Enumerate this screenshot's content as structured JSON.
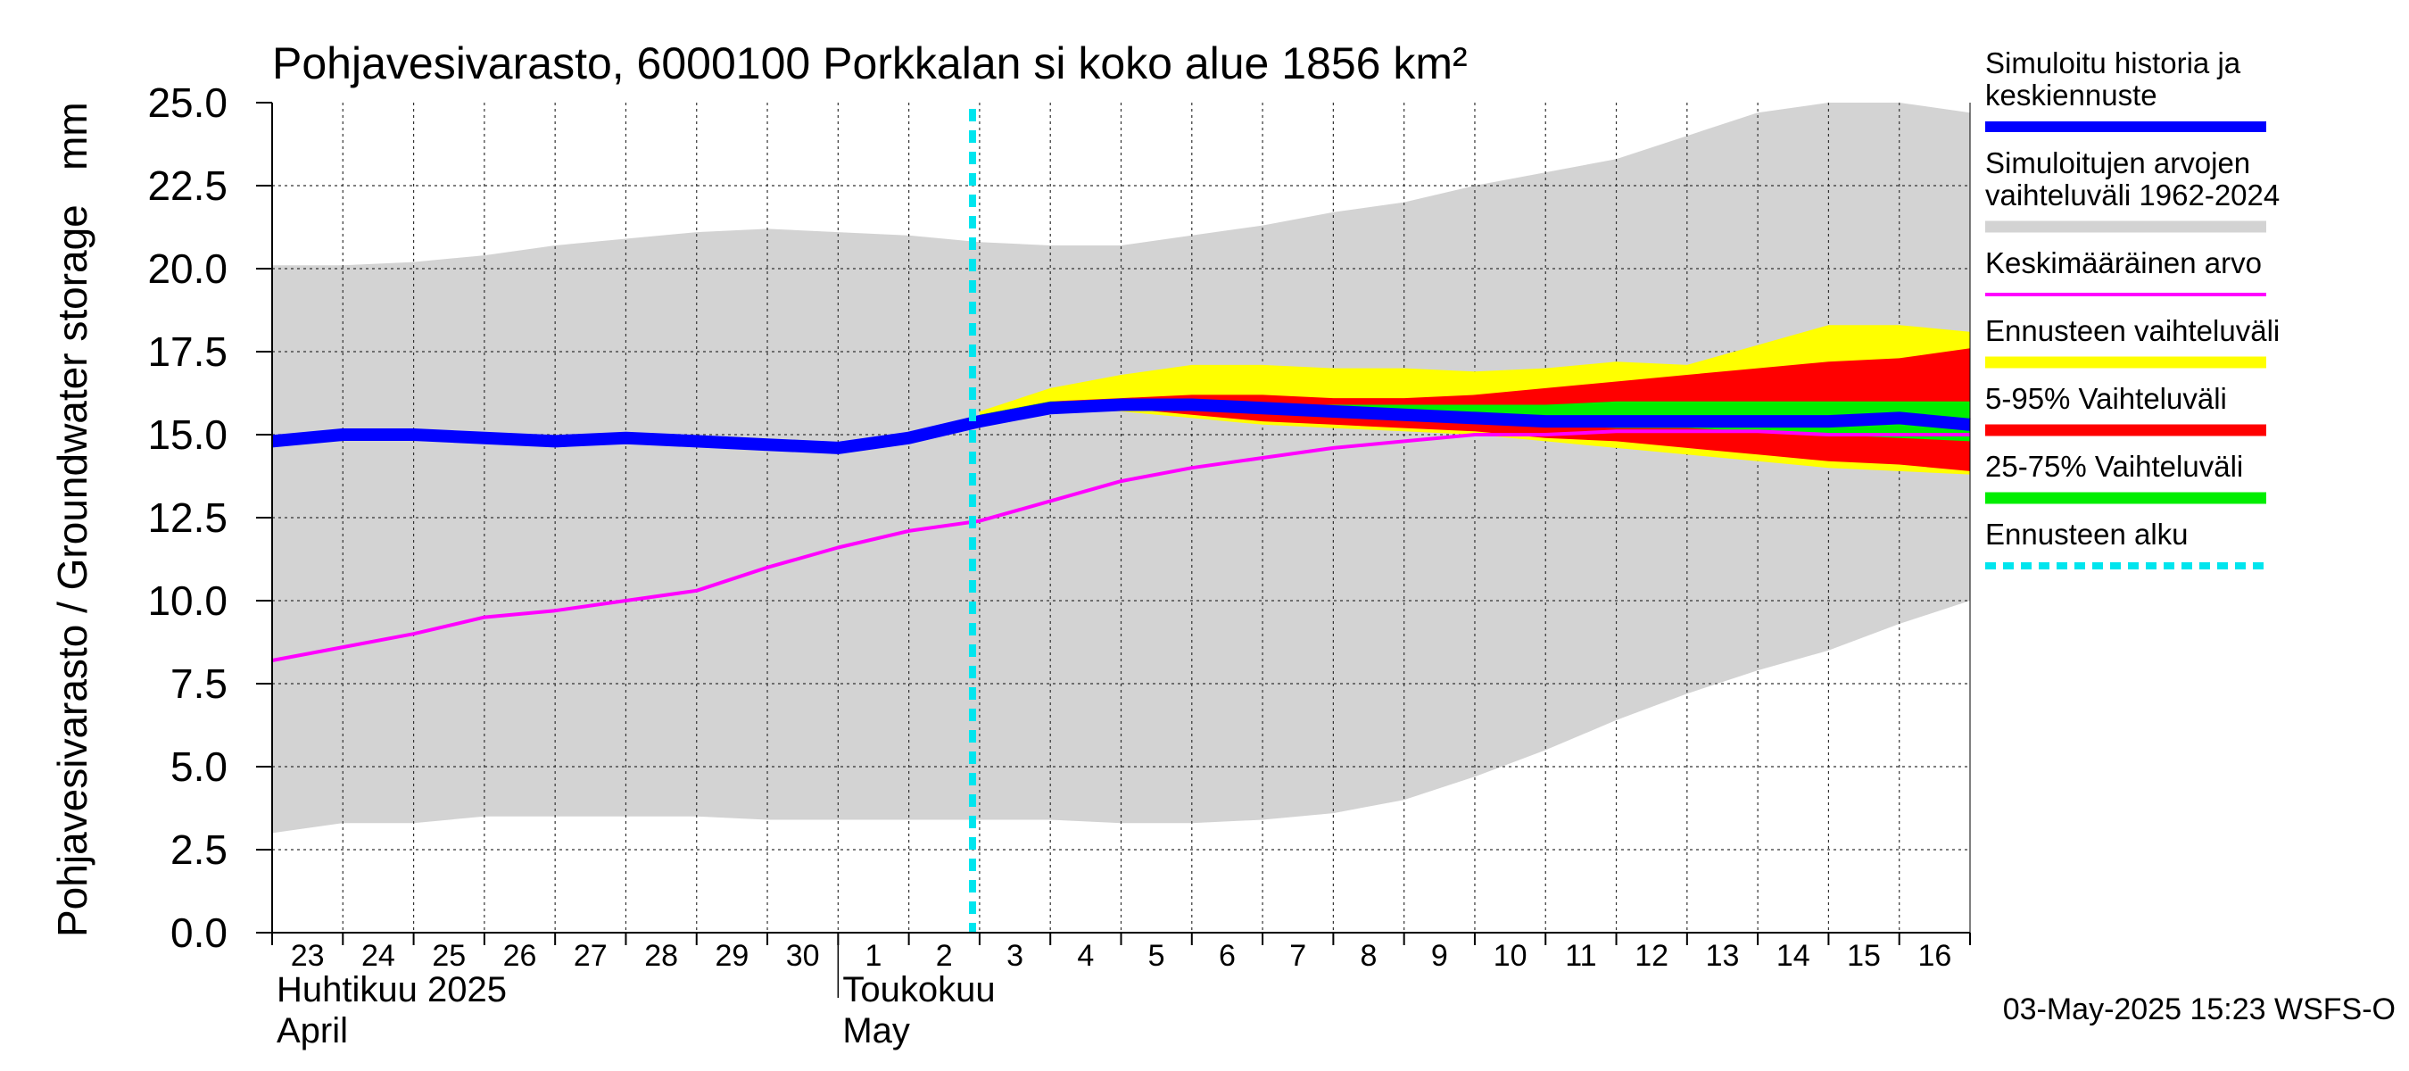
{
  "chart_data": {
    "type": "area",
    "title": "Pohjavesivarasto, 6000100 Porkkalan si koko alue 1856 km²",
    "ylabel": "Pohjavesivarasto / Groundwater storage   mm",
    "ylim": [
      0,
      25
    ],
    "yticks": [
      "0.0",
      "2.5",
      "5.0",
      "7.5",
      "10.0",
      "12.5",
      "15.0",
      "17.5",
      "20.0",
      "22.5",
      "25.0"
    ],
    "x_days": [
      "23",
      "24",
      "25",
      "26",
      "27",
      "28",
      "29",
      "30",
      "1",
      "2",
      "3",
      "4",
      "5",
      "6",
      "7",
      "8",
      "9",
      "10",
      "11",
      "12",
      "13",
      "14",
      "15",
      "16"
    ],
    "month_labels": [
      {
        "line1": "Huhtikuu  2025",
        "line2": "April",
        "start_index": 0
      },
      {
        "line1": "Toukokuu",
        "line2": "May",
        "start_index": 8
      }
    ],
    "forecast_start_index": 9.9,
    "grid": true,
    "series": {
      "hist_range": {
        "name": "Simuloitujen arvojen vaihteluväli 1962-2024",
        "t": [
          0,
          1,
          2,
          3,
          4,
          5,
          6,
          7,
          8,
          9,
          10,
          11,
          12,
          13,
          14,
          15,
          16,
          17,
          18,
          19,
          20,
          21,
          22,
          23,
          24
        ],
        "upper": [
          20.1,
          20.1,
          20.2,
          20.4,
          20.7,
          20.9,
          21.1,
          21.2,
          21.1,
          21.0,
          20.8,
          20.7,
          20.7,
          21.0,
          21.3,
          21.7,
          22.0,
          22.5,
          22.9,
          23.3,
          24.0,
          24.7,
          25.0,
          25.0,
          24.7
        ],
        "lower": [
          3.0,
          3.3,
          3.3,
          3.5,
          3.5,
          3.5,
          3.5,
          3.4,
          3.4,
          3.4,
          3.4,
          3.4,
          3.3,
          3.3,
          3.4,
          3.6,
          4.0,
          4.7,
          5.5,
          6.4,
          7.2,
          7.9,
          8.5,
          9.3,
          10.0
        ]
      },
      "forecast_range": {
        "name": "Ennusteen vaihteluväli",
        "t": [
          10,
          11,
          12,
          13,
          14,
          15,
          16,
          17,
          18,
          19,
          20,
          21,
          22,
          23,
          24
        ],
        "upper": [
          15.7,
          16.4,
          16.8,
          17.1,
          17.1,
          17.0,
          17.0,
          16.9,
          17.0,
          17.2,
          17.1,
          17.7,
          18.3,
          18.3,
          18.1
        ],
        "lower": [
          15.5,
          15.8,
          15.7,
          15.5,
          15.3,
          15.2,
          15.1,
          15.0,
          14.8,
          14.6,
          14.4,
          14.2,
          14.0,
          13.9,
          13.8
        ]
      },
      "p5_95": {
        "name": "5-95% Vaihteluväli",
        "t": [
          10,
          11,
          12,
          13,
          14,
          15,
          16,
          17,
          18,
          19,
          20,
          21,
          22,
          23,
          24
        ],
        "upper": [
          15.6,
          16.0,
          16.1,
          16.2,
          16.2,
          16.1,
          16.1,
          16.2,
          16.4,
          16.6,
          16.8,
          17.0,
          17.2,
          17.3,
          17.6
        ],
        "lower": [
          15.5,
          15.9,
          15.8,
          15.6,
          15.4,
          15.3,
          15.2,
          15.1,
          14.9,
          14.8,
          14.6,
          14.4,
          14.2,
          14.1,
          13.9
        ]
      },
      "p25_75": {
        "name": "25-75% Vaihteluväli",
        "t": [
          10,
          11,
          12,
          13,
          14,
          15,
          16,
          17,
          18,
          19,
          20,
          21,
          22,
          23,
          24
        ],
        "upper": [
          15.6,
          16.0,
          16.0,
          16.0,
          15.9,
          15.9,
          15.9,
          15.9,
          15.9,
          16.0,
          16.0,
          16.0,
          16.0,
          16.0,
          16.0
        ],
        "lower": [
          15.5,
          15.9,
          15.9,
          15.8,
          15.7,
          15.6,
          15.5,
          15.4,
          15.3,
          15.2,
          15.2,
          15.1,
          15.0,
          14.9,
          14.8
        ]
      },
      "median": {
        "name": "Simuloitu historia ja keskiennuste",
        "t": [
          0,
          1,
          2,
          3,
          4,
          5,
          6,
          7,
          8,
          9,
          10,
          11,
          12,
          13,
          14,
          15,
          16,
          17,
          18,
          19,
          20,
          21,
          22,
          23,
          24
        ],
        "values": [
          14.8,
          15.0,
          15.0,
          14.9,
          14.8,
          14.9,
          14.8,
          14.7,
          14.6,
          14.9,
          15.4,
          15.8,
          15.9,
          15.9,
          15.8,
          15.7,
          15.6,
          15.5,
          15.4,
          15.4,
          15.4,
          15.4,
          15.4,
          15.5,
          15.3
        ]
      },
      "mean": {
        "name": "Keskimääräinen arvo",
        "t": [
          0,
          1,
          2,
          3,
          4,
          5,
          6,
          7,
          8,
          9,
          10,
          11,
          12,
          13,
          14,
          15,
          16,
          17,
          18,
          19,
          20,
          21,
          22,
          23,
          24
        ],
        "values": [
          8.2,
          8.6,
          9.0,
          9.5,
          9.7,
          10.0,
          10.3,
          11.0,
          11.6,
          12.1,
          12.4,
          13.0,
          13.6,
          14.0,
          14.3,
          14.6,
          14.8,
          15.0,
          15.0,
          15.1,
          15.1,
          15.1,
          15.0,
          15.0,
          15.0
        ]
      }
    },
    "legend": [
      {
        "label_lines": [
          "Simuloitu historia ja",
          "keskiennuste"
        ],
        "color": "#0000ff",
        "style": "thick"
      },
      {
        "label_lines": [
          "Simuloitujen arvojen",
          "vaihteluväli 1962-2024"
        ],
        "color": "#d3d3d3",
        "style": "band"
      },
      {
        "label_lines": [
          "Keskimääräinen arvo"
        ],
        "color": "#ff00ff",
        "style": "thin"
      },
      {
        "label_lines": [
          "Ennusteen vaihteluväli"
        ],
        "color": "#ffff00",
        "style": "band"
      },
      {
        "label_lines": [
          "5-95% Vaihteluväli"
        ],
        "color": "#ff0000",
        "style": "band"
      },
      {
        "label_lines": [
          "25-75% Vaihteluväli"
        ],
        "color": "#00ee00",
        "style": "band"
      },
      {
        "label_lines": [
          "Ennusteen alku"
        ],
        "color": "#00e5ee",
        "style": "dashed"
      }
    ],
    "footer": "03-May-2025 15:23 WSFS-O"
  }
}
